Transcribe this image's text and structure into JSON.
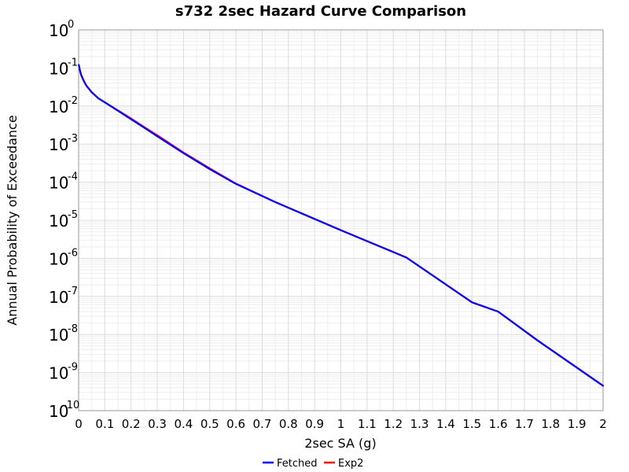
{
  "chart_data": {
    "type": "line",
    "title": "s732 2sec Hazard Curve Comparison",
    "xlabel": "2sec SA (g)",
    "ylabel": "Annual Probability of Exceedance",
    "xscale": "linear",
    "yscale": "log",
    "xlim": [
      0,
      2
    ],
    "ylim": [
      1e-10,
      1
    ],
    "grid": true,
    "legend_position": "bottom-center",
    "x_ticks": [
      "0",
      "0.1",
      "0.2",
      "0.3",
      "0.4",
      "0.5",
      "0.6",
      "0.7",
      "0.8",
      "0.9",
      "1",
      "1.1",
      "1.2",
      "1.3",
      "1.4",
      "1.5",
      "1.6",
      "1.7",
      "1.8",
      "1.9",
      "2"
    ],
    "y_ticks": [
      {
        "value": 1,
        "base": "10",
        "exp": "0"
      },
      {
        "value": 0.1,
        "base": "10",
        "exp": "-1"
      },
      {
        "value": 0.01,
        "base": "10",
        "exp": "-2"
      },
      {
        "value": 0.001,
        "base": "10",
        "exp": "-3"
      },
      {
        "value": 0.0001,
        "base": "10",
        "exp": "-4"
      },
      {
        "value": 1e-05,
        "base": "10",
        "exp": "-5"
      },
      {
        "value": 1e-06,
        "base": "10",
        "exp": "-6"
      },
      {
        "value": 1e-07,
        "base": "10",
        "exp": "-7"
      },
      {
        "value": 1e-08,
        "base": "10",
        "exp": "-8"
      },
      {
        "value": 1e-09,
        "base": "10",
        "exp": "-9"
      },
      {
        "value": 1e-10,
        "base": "10",
        "exp": "-10"
      }
    ],
    "series": [
      {
        "name": "Fetched",
        "color": "#0000ff",
        "x": [
          0.001,
          0.005,
          0.01,
          0.02,
          0.03,
          0.05,
          0.075,
          0.1,
          0.15,
          0.2,
          0.25,
          0.3,
          0.4,
          0.5,
          0.6,
          0.75,
          1.0,
          1.25,
          1.5,
          1.6,
          1.75,
          2.0
        ],
        "y": [
          0.12,
          0.085,
          0.065,
          0.045,
          0.034,
          0.023,
          0.016,
          0.0125,
          0.0075,
          0.0045,
          0.0027,
          0.0016,
          0.00058,
          0.00022,
          9e-05,
          3e-05,
          5.5e-06,
          1.05e-06,
          7e-08,
          4e-08,
          7e-09,
          4.5e-10
        ]
      },
      {
        "name": "Exp2",
        "color": "#ff0000",
        "x": [
          0.001,
          0.005,
          0.01,
          0.02,
          0.03,
          0.05,
          0.075,
          0.1,
          0.15,
          0.2,
          0.25,
          0.3,
          0.4,
          0.5,
          0.6,
          0.75,
          1.0,
          1.25,
          1.5,
          1.6,
          1.75,
          2.0
        ],
        "y": [
          0.12,
          0.085,
          0.065,
          0.045,
          0.034,
          0.023,
          0.016,
          0.0125,
          0.0077,
          0.0047,
          0.0028,
          0.0017,
          0.0006,
          0.00023,
          9.2e-05,
          3e-05,
          5.5e-06,
          1.05e-06,
          7e-08,
          4e-08,
          7e-09,
          4.5e-10
        ]
      }
    ]
  }
}
